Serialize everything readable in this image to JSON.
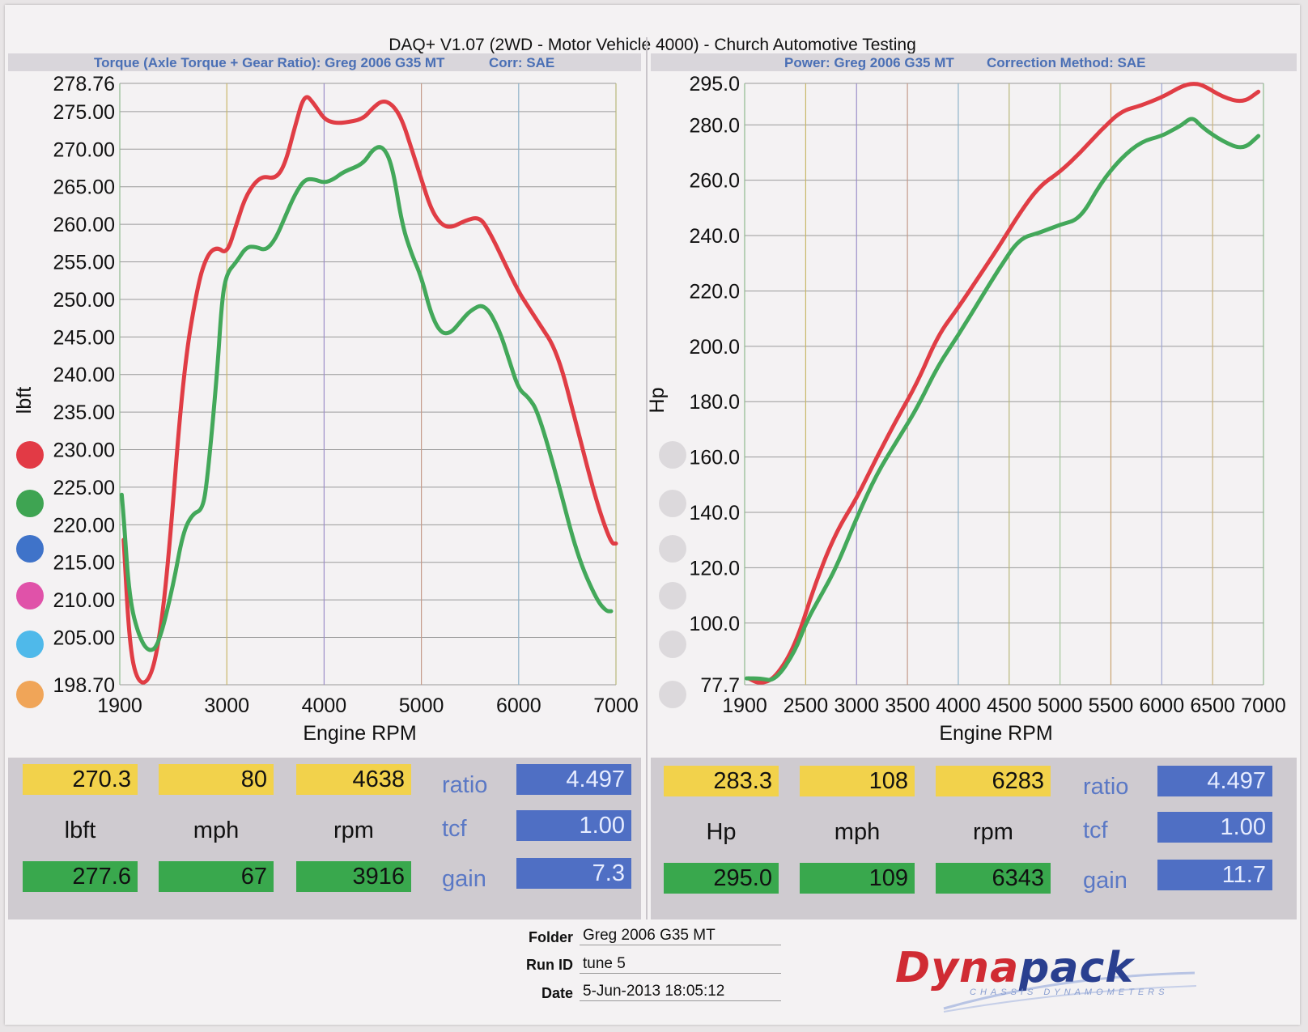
{
  "title": "DAQ+ V1.07 (2WD - Motor Vehicle 4000) - Church Automotive Testing",
  "chart_data": [
    {
      "type": "line",
      "subtitle_left": "Torque (Axle Torque + Gear Ratio): Greg 2006 G35 MT",
      "subtitle_right": "Corr: SAE",
      "xlabel": "Engine RPM",
      "ylabel": "lbft",
      "xlim": [
        1900,
        7000
      ],
      "ylim": [
        198.7,
        278.76
      ],
      "x_ticks": [
        1900,
        3000,
        4000,
        5000,
        6000,
        7000
      ],
      "y_ticks": [
        198.7,
        205.0,
        210.0,
        215.0,
        220.0,
        225.0,
        230.0,
        235.0,
        240.0,
        245.0,
        250.0,
        255.0,
        260.0,
        265.0,
        270.0,
        275.0,
        278.76
      ],
      "y_tick_labels": [
        "198.70",
        "205.00",
        "210.00",
        "215.00",
        "220.00",
        "225.00",
        "230.00",
        "235.00",
        "240.00",
        "245.00",
        "250.00",
        "255.00",
        "260.00",
        "265.00",
        "270.00",
        "275.00",
        "278.76"
      ],
      "grid": true,
      "series": [
        {
          "color": "#e03d45",
          "x": [
            1940,
            2000,
            2080,
            2200,
            2300,
            2400,
            2550,
            2700,
            2800,
            2900,
            3000,
            3100,
            3200,
            3350,
            3500,
            3600,
            3700,
            3800,
            3900,
            4000,
            4100,
            4200,
            4400,
            4500,
            4600,
            4700,
            4800,
            4900,
            5000,
            5100,
            5200,
            5300,
            5450,
            5600,
            5700,
            5850,
            6000,
            6100,
            6200,
            6400,
            6600,
            6800,
            6950,
            7000
          ],
          "y": [
            218,
            204,
            199,
            199,
            204,
            215,
            240,
            252,
            256,
            257,
            256,
            260,
            264,
            266.5,
            266,
            268,
            273,
            277.5,
            276,
            274,
            273.5,
            273.5,
            274,
            275.5,
            276.5,
            276,
            274,
            270,
            266,
            262,
            260,
            259.5,
            260.5,
            261,
            259,
            255,
            251,
            249,
            247,
            243,
            233,
            223,
            217.5,
            217.5
          ]
        },
        {
          "color": "#43a85a",
          "x": [
            1920,
            1940,
            2000,
            2100,
            2200,
            2300,
            2450,
            2550,
            2650,
            2750,
            2800,
            2900,
            2950,
            3000,
            3100,
            3200,
            3300,
            3400,
            3500,
            3600,
            3700,
            3800,
            3900,
            4000,
            4100,
            4200,
            4400,
            4500,
            4600,
            4700,
            4800,
            4900,
            5000,
            5100,
            5200,
            5300,
            5400,
            5500,
            5650,
            5800,
            5900,
            6000,
            6100,
            6200,
            6400,
            6600,
            6800,
            6900,
            6950
          ],
          "y": [
            224,
            221,
            210,
            205,
            203,
            204,
            212,
            219,
            221.5,
            222,
            226,
            240,
            250,
            253.5,
            255,
            257,
            257,
            256.5,
            258,
            261,
            264,
            266,
            266,
            265.5,
            266,
            267,
            268,
            270,
            270.5,
            268,
            260,
            256,
            253,
            248,
            245.5,
            245.5,
            247,
            248.5,
            249.5,
            246,
            242,
            238,
            237,
            235,
            226,
            216,
            210,
            208.5,
            208.5
          ]
        }
      ]
    },
    {
      "type": "line",
      "subtitle_left": "Power: Greg 2006 G35 MT",
      "subtitle_right": "Correction Method: SAE",
      "xlabel": "Engine RPM",
      "ylabel": "Hp",
      "xlim": [
        1900,
        7000
      ],
      "ylim": [
        77.7,
        295.0
      ],
      "x_ticks": [
        1900,
        2500,
        3000,
        3500,
        4000,
        4500,
        5000,
        5500,
        6000,
        6500,
        7000
      ],
      "y_ticks": [
        77.7,
        100.0,
        120.0,
        140.0,
        160.0,
        180.0,
        200.0,
        220.0,
        240.0,
        260.0,
        280.0,
        295.0
      ],
      "y_tick_labels": [
        "77.7",
        "100.0",
        "120.0",
        "140.0",
        "160.0",
        "180.0",
        "200.0",
        "220.0",
        "240.0",
        "260.0",
        "280.0",
        "295.0"
      ],
      "grid": true,
      "series": [
        {
          "color": "#e03d45",
          "x": [
            1940,
            2050,
            2200,
            2400,
            2600,
            2800,
            3000,
            3200,
            3400,
            3600,
            3800,
            4000,
            4200,
            4400,
            4600,
            4800,
            5000,
            5200,
            5400,
            5600,
            5800,
            6000,
            6100,
            6200,
            6300,
            6400,
            6600,
            6800,
            6950
          ],
          "y": [
            80,
            78,
            80,
            92,
            115,
            133,
            145,
            160,
            174,
            187,
            204,
            214,
            225,
            236,
            248,
            258,
            263,
            270,
            278,
            285,
            287,
            290,
            292,
            294,
            295,
            294.5,
            290,
            288,
            292
          ]
        },
        {
          "color": "#43a85a",
          "x": [
            1920,
            2050,
            2200,
            2400,
            2500,
            2650,
            2800,
            3000,
            3200,
            3400,
            3600,
            3800,
            4000,
            4200,
            4400,
            4600,
            4800,
            5000,
            5200,
            5400,
            5600,
            5800,
            6000,
            6100,
            6200,
            6300,
            6400,
            6600,
            6800,
            6950
          ],
          "y": [
            80,
            80,
            79,
            90,
            100,
            110,
            120,
            138,
            154,
            166,
            178,
            193,
            204,
            216,
            228,
            239,
            241,
            244,
            246,
            259,
            268,
            274,
            276,
            278,
            280,
            283,
            279,
            274,
            271,
            276
          ]
        }
      ]
    }
  ],
  "panels": {
    "torque": {
      "row1": [
        "270.3",
        "80",
        "4638"
      ],
      "units": [
        "lbft",
        "mph",
        "rpm"
      ],
      "row2": [
        "277.6",
        "67",
        "3916"
      ],
      "labels": [
        "ratio",
        "tcf",
        "gain"
      ],
      "blue": [
        "4.497",
        "1.00",
        "7.3"
      ]
    },
    "power": {
      "row1": [
        "283.3",
        "108",
        "6283"
      ],
      "units": [
        "Hp",
        "mph",
        "rpm"
      ],
      "row2": [
        "295.0",
        "109",
        "6343"
      ],
      "labels": [
        "ratio",
        "tcf",
        "gain"
      ],
      "blue": [
        "4.497",
        "1.00",
        "11.7"
      ]
    }
  },
  "legend_colors_left": [
    "#e23a45",
    "#3ea452",
    "#3f73c9",
    "#e052a9",
    "#4fb9ea",
    "#f0a558"
  ],
  "footer": {
    "folder_label": "Folder",
    "folder_value": "Greg 2006 G35 MT",
    "runid_label": "Run ID",
    "runid_value": "tune 5",
    "date_label": "Date",
    "date_value": "5-Jun-2013 18:05:12"
  },
  "logo": {
    "name_a": "Dyna",
    "name_b": "pack",
    "tagline": "CHASSIS DYNAMOMETERS"
  }
}
